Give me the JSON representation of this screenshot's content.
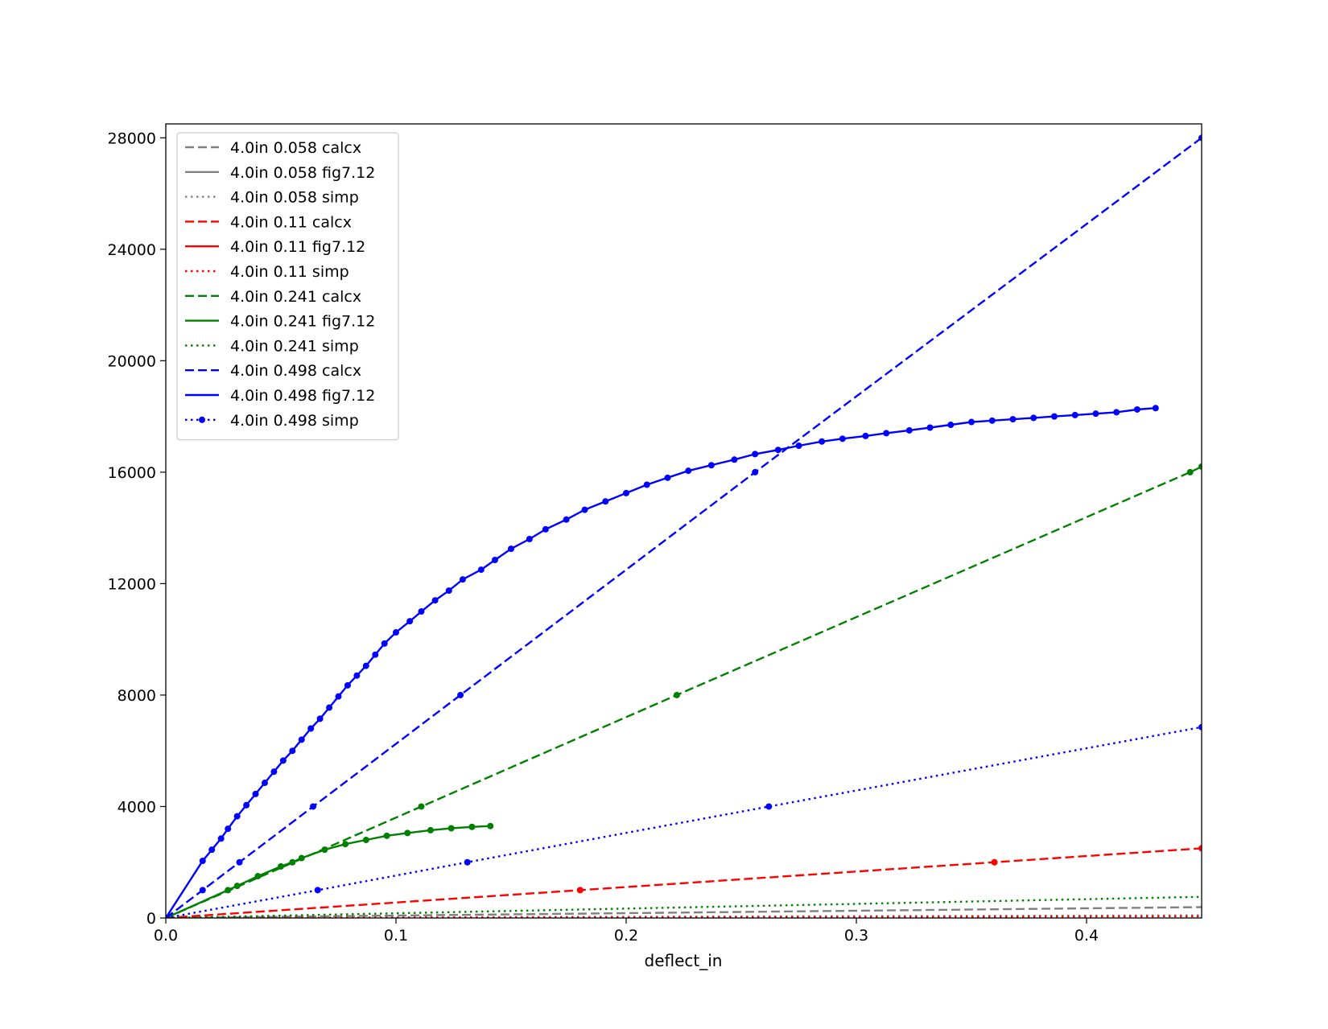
{
  "chart_data": {
    "type": "line",
    "title": "",
    "xlabel": "deflect_in",
    "ylabel": "",
    "xlim": [
      0.0,
      0.45
    ],
    "ylim": [
      0,
      28500
    ],
    "xticks": [
      0.0,
      0.1,
      0.2,
      0.3,
      0.4
    ],
    "xtick_labels": [
      "0.0",
      "0.1",
      "0.2",
      "0.3",
      "0.4"
    ],
    "yticks": [
      0,
      4000,
      8000,
      12000,
      16000,
      20000,
      24000,
      28000
    ],
    "ytick_labels": [
      "0",
      "4000",
      "8000",
      "12000",
      "16000",
      "20000",
      "24000",
      "28000"
    ],
    "grid": false,
    "legend_position": "upper-left",
    "series": [
      {
        "name": "4.0in 0.058 calcx",
        "color": "#808080",
        "style": "dashed",
        "markers": false,
        "x": [
          0.0,
          0.45
        ],
        "y": [
          0,
          390
        ]
      },
      {
        "name": "4.0in 0.058 fig7.12",
        "color": "#808080",
        "style": "solid",
        "markers": false,
        "x": [],
        "y": []
      },
      {
        "name": "4.0in 0.058 simp",
        "color": "#808080",
        "style": "dotted",
        "markers": false,
        "x": [
          0.0,
          0.45
        ],
        "y": [
          0,
          95
        ]
      },
      {
        "name": "4.0in 0.11 calcx",
        "color": "#ff0000",
        "style": "dashed",
        "markers": true,
        "x": [
          0.0,
          0.18,
          0.36,
          0.45
        ],
        "y": [
          0,
          1000,
          2000,
          2500
        ]
      },
      {
        "name": "4.0in 0.11 fig7.12",
        "color": "#ff0000",
        "style": "solid",
        "markers": false,
        "x": [],
        "y": []
      },
      {
        "name": "4.0in 0.11 simp",
        "color": "#ff0000",
        "style": "dotted",
        "markers": false,
        "x": [
          0.0,
          0.45
        ],
        "y": [
          0,
          60
        ]
      },
      {
        "name": "4.0in 0.241 calcx",
        "color": "#008000",
        "style": "dashed",
        "markers": true,
        "x": [
          0.0,
          0.111,
          0.222,
          0.445,
          0.45
        ],
        "y": [
          0,
          4000,
          8000,
          16000,
          16200
        ]
      },
      {
        "name": "4.0in 0.241 fig7.12",
        "color": "#008000",
        "style": "solid",
        "markers": true,
        "x": [
          0.0,
          0.027,
          0.031,
          0.04,
          0.05,
          0.055,
          0.059,
          0.069,
          0.078,
          0.087,
          0.096,
          0.105,
          0.115,
          0.124,
          0.133,
          0.141
        ],
        "y": [
          0,
          1000,
          1150,
          1500,
          1850,
          2000,
          2150,
          2450,
          2650,
          2800,
          2950,
          3050,
          3150,
          3220,
          3270,
          3300
        ]
      },
      {
        "name": "4.0in 0.241 simp",
        "color": "#008000",
        "style": "dotted",
        "markers": false,
        "x": [
          0.0,
          0.45
        ],
        "y": [
          0,
          760
        ]
      },
      {
        "name": "4.0in 0.498 calcx",
        "color": "#0000ff",
        "style": "dashed",
        "markers": true,
        "x": [
          0.0,
          0.016,
          0.032,
          0.064,
          0.128,
          0.256,
          0.45
        ],
        "y": [
          0,
          1000,
          2000,
          4000,
          8000,
          16000,
          28000
        ]
      },
      {
        "name": "4.0in 0.498 fig7.12",
        "color": "#0000ff",
        "style": "solid",
        "markers": true,
        "x": [
          0.0,
          0.016,
          0.02,
          0.024,
          0.027,
          0.031,
          0.035,
          0.039,
          0.043,
          0.047,
          0.051,
          0.055,
          0.059,
          0.063,
          0.067,
          0.071,
          0.075,
          0.079,
          0.083,
          0.087,
          0.091,
          0.095,
          0.1,
          0.106,
          0.111,
          0.117,
          0.123,
          0.129,
          0.137,
          0.143,
          0.15,
          0.158,
          0.165,
          0.174,
          0.182,
          0.191,
          0.2,
          0.209,
          0.218,
          0.227,
          0.237,
          0.247,
          0.256,
          0.266,
          0.275,
          0.285,
          0.294,
          0.304,
          0.313,
          0.323,
          0.332,
          0.341,
          0.35,
          0.359,
          0.368,
          0.377,
          0.386,
          0.395,
          0.404,
          0.413,
          0.422,
          0.43
        ],
        "y": [
          0,
          2050,
          2450,
          2850,
          3200,
          3650,
          4050,
          4450,
          4850,
          5250,
          5650,
          6000,
          6400,
          6800,
          7150,
          7550,
          7950,
          8350,
          8700,
          9050,
          9450,
          9850,
          10250,
          10650,
          11000,
          11400,
          11750,
          12150,
          12500,
          12850,
          13250,
          13600,
          13950,
          14300,
          14650,
          14950,
          15250,
          15550,
          15800,
          16050,
          16250,
          16450,
          16650,
          16800,
          16950,
          17100,
          17200,
          17300,
          17400,
          17500,
          17600,
          17700,
          17800,
          17850,
          17900,
          17950,
          18000,
          18050,
          18100,
          18150,
          18250,
          18300
        ]
      },
      {
        "name": "4.0in 0.498 simp",
        "color": "#0000ff",
        "style": "dotted",
        "markers": true,
        "x": [
          0.0,
          0.066,
          0.131,
          0.262,
          0.45
        ],
        "y": [
          0,
          1000,
          2000,
          4000,
          6850
        ]
      }
    ]
  }
}
